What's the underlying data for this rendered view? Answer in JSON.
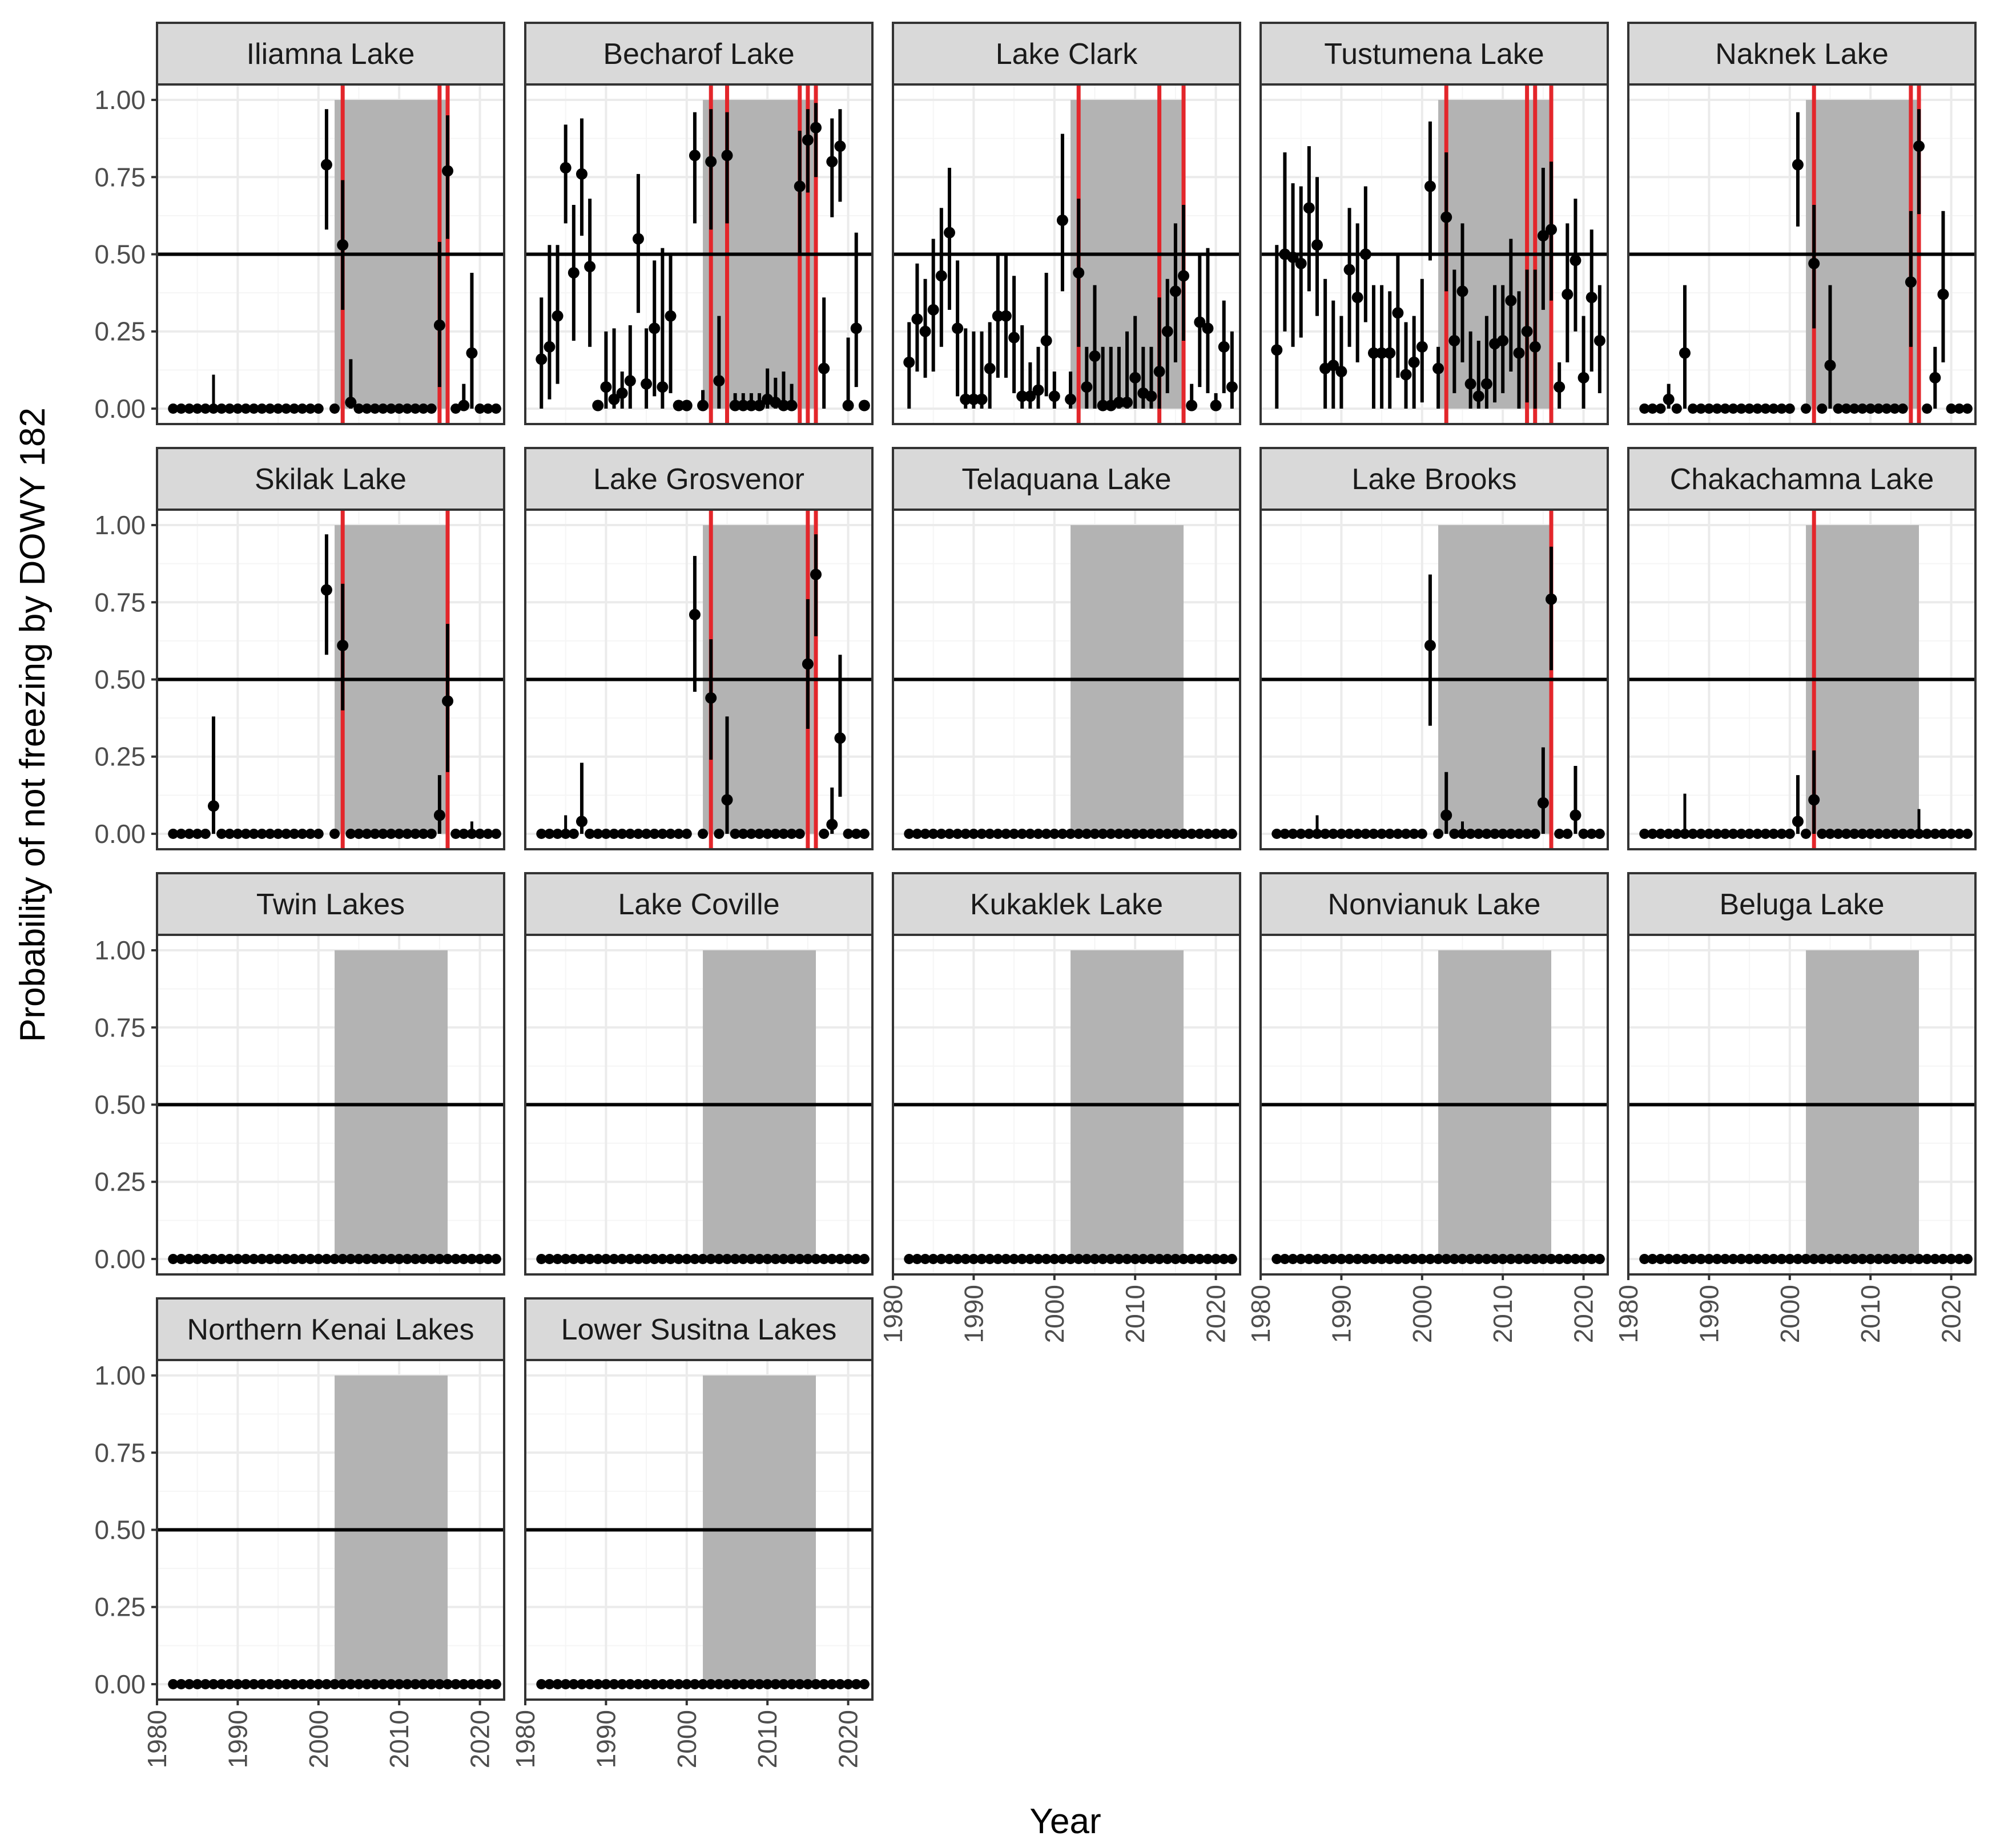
{
  "chart_data": {
    "type": "faceted-scatter-errorbar",
    "xlabel": "Year",
    "ylabel": "Probability of not freezing by DOWY 182",
    "xlim": [
      1980,
      2023
    ],
    "ylim": [
      -0.05,
      1.05
    ],
    "x_ticks": [
      1980,
      1990,
      2000,
      2010,
      2020
    ],
    "y_ticks": [
      0,
      0.25,
      0.5,
      0.75,
      1
    ],
    "y_tick_labels": [
      "0.00",
      "0.25",
      "0.50",
      "0.75",
      "1.00"
    ],
    "reference_line_y": 0.5,
    "shaded_band": [
      2002,
      2016
    ],
    "colors": {
      "point": "#000000",
      "flag_line": "#e3262b",
      "band": "#b3b3b3",
      "strip_bg": "#d9d9d9",
      "grid_major": "#ebebeb",
      "grid_minor": "#f5f5f5"
    },
    "facets": [
      {
        "name": "Iliamna Lake",
        "red_lines": [
          2003,
          2015,
          2016
        ],
        "points": [
          [
            2001,
            0.79,
            0.58,
            0.97
          ],
          [
            2003,
            0.53,
            0.32,
            0.74
          ],
          [
            2004,
            0.02,
            0,
            0.16
          ],
          [
            2015,
            0.27,
            0.07,
            0.54
          ],
          [
            2016,
            0.77,
            0.55,
            0.95
          ],
          [
            2018,
            0.01,
            0,
            0.08
          ],
          [
            2019,
            0.18,
            0,
            0.44
          ]
        ],
        "small": [
          [
            1987,
            0.11
          ]
        ]
      },
      {
        "name": "Becharof Lake",
        "red_lines": [
          2003,
          2005,
          2014,
          2015,
          2016
        ],
        "points": [
          [
            1982,
            0.16,
            0,
            0.36
          ],
          [
            1983,
            0.2,
            0.03,
            0.53
          ],
          [
            1984,
            0.3,
            0.08,
            0.53
          ],
          [
            1985,
            0.78,
            0.6,
            0.92
          ],
          [
            1986,
            0.44,
            0.22,
            0.66
          ],
          [
            1987,
            0.76,
            0.56,
            0.94
          ],
          [
            1988,
            0.46,
            0.2,
            0.68
          ],
          [
            1989,
            0.01,
            0,
            0.02
          ],
          [
            1990,
            0.07,
            0,
            0.25
          ],
          [
            1991,
            0.03,
            0,
            0.26
          ],
          [
            1992,
            0.05,
            0,
            0.12
          ],
          [
            1993,
            0.09,
            0,
            0.27
          ],
          [
            1994,
            0.55,
            0.31,
            0.76
          ],
          [
            1995,
            0.08,
            0,
            0.26
          ],
          [
            1996,
            0.26,
            0.04,
            0.48
          ],
          [
            1997,
            0.07,
            0,
            0.52
          ],
          [
            1998,
            0.3,
            0.05,
            0.5
          ],
          [
            1999,
            0.01,
            0,
            0.02
          ],
          [
            2000,
            0.01,
            0,
            0.02
          ],
          [
            2001,
            0.82,
            0.6,
            0.96
          ],
          [
            2002,
            0.01,
            0,
            0.06
          ],
          [
            2003,
            0.8,
            0.58,
            0.97
          ],
          [
            2004,
            0.09,
            0,
            0.3
          ],
          [
            2005,
            0.82,
            0.6,
            0.96
          ],
          [
            2006,
            0.01,
            0,
            0.05
          ],
          [
            2007,
            0.01,
            0,
            0.05
          ],
          [
            2008,
            0.01,
            0,
            0.05
          ],
          [
            2009,
            0.01,
            0,
            0.05
          ],
          [
            2010,
            0.03,
            0,
            0.13
          ],
          [
            2011,
            0.02,
            0,
            0.1
          ],
          [
            2012,
            0.01,
            0,
            0.12
          ],
          [
            2013,
            0.01,
            0,
            0.08
          ],
          [
            2014,
            0.72,
            0.5,
            0.9
          ],
          [
            2015,
            0.87,
            0.7,
            0.97
          ],
          [
            2016,
            0.91,
            0.75,
            0.99
          ],
          [
            2017,
            0.13,
            0,
            0.36
          ],
          [
            2018,
            0.8,
            0.62,
            0.94
          ],
          [
            2019,
            0.85,
            0.67,
            0.97
          ],
          [
            2020,
            0.01,
            0,
            0.23
          ],
          [
            2021,
            0.26,
            0.07,
            0.57
          ],
          [
            2022,
            0.01,
            0,
            0.02
          ]
        ],
        "small": []
      },
      {
        "name": "Lake Clark",
        "red_lines": [
          2003,
          2013,
          2016
        ],
        "points": [
          [
            1982,
            0.15,
            0,
            0.28
          ],
          [
            1983,
            0.29,
            0.12,
            0.47
          ],
          [
            1984,
            0.25,
            0.1,
            0.42
          ],
          [
            1985,
            0.32,
            0.12,
            0.55
          ],
          [
            1986,
            0.43,
            0.2,
            0.65
          ],
          [
            1987,
            0.57,
            0.32,
            0.78
          ],
          [
            1988,
            0.26,
            0.04,
            0.48
          ],
          [
            1989,
            0.03,
            0,
            0.26
          ],
          [
            1990,
            0.03,
            0,
            0.25
          ],
          [
            1991,
            0.03,
            0,
            0.25
          ],
          [
            1992,
            0.13,
            0,
            0.28
          ],
          [
            1993,
            0.3,
            0.1,
            0.5
          ],
          [
            1994,
            0.3,
            0.1,
            0.5
          ],
          [
            1995,
            0.23,
            0.05,
            0.43
          ],
          [
            1996,
            0.04,
            0,
            0.27
          ],
          [
            1997,
            0.04,
            0,
            0.15
          ],
          [
            1998,
            0.06,
            0,
            0.2
          ],
          [
            1999,
            0.22,
            0.04,
            0.44
          ],
          [
            2000,
            0.04,
            0,
            0.12
          ],
          [
            2001,
            0.61,
            0.38,
            0.89
          ],
          [
            2002,
            0.03,
            0,
            0.12
          ],
          [
            2003,
            0.44,
            0.2,
            0.68
          ],
          [
            2004,
            0.07,
            0,
            0.2
          ],
          [
            2005,
            0.17,
            0,
            0.4
          ],
          [
            2006,
            0.01,
            0,
            0.2
          ],
          [
            2007,
            0.01,
            0,
            0.2
          ],
          [
            2008,
            0.02,
            0,
            0.2
          ],
          [
            2009,
            0.02,
            0,
            0.25
          ],
          [
            2010,
            0.1,
            0,
            0.3
          ],
          [
            2011,
            0.05,
            0,
            0.2
          ],
          [
            2012,
            0.04,
            0,
            0.2
          ],
          [
            2013,
            0.12,
            0,
            0.36
          ],
          [
            2014,
            0.25,
            0.05,
            0.42
          ],
          [
            2015,
            0.38,
            0.15,
            0.6
          ],
          [
            2016,
            0.43,
            0.22,
            0.66
          ],
          [
            2017,
            0.01,
            0,
            0.08
          ],
          [
            2018,
            0.28,
            0.07,
            0.5
          ],
          [
            2019,
            0.26,
            0.05,
            0.52
          ],
          [
            2020,
            0.01,
            0,
            0.05
          ],
          [
            2021,
            0.2,
            0.05,
            0.35
          ],
          [
            2022,
            0.07,
            0,
            0.25
          ]
        ],
        "small": []
      },
      {
        "name": "Tustumena Lake",
        "red_lines": [
          2003,
          2013,
          2014,
          2016
        ],
        "points": [
          [
            1982,
            0.19,
            0,
            0.53
          ],
          [
            1983,
            0.5,
            0.25,
            0.83
          ],
          [
            1984,
            0.49,
            0.2,
            0.73
          ],
          [
            1985,
            0.47,
            0.23,
            0.72
          ],
          [
            1986,
            0.65,
            0.38,
            0.85
          ],
          [
            1987,
            0.53,
            0.3,
            0.75
          ],
          [
            1988,
            0.13,
            0,
            0.42
          ],
          [
            1989,
            0.14,
            0,
            0.35
          ],
          [
            1990,
            0.12,
            0,
            0.3
          ],
          [
            1991,
            0.45,
            0.2,
            0.65
          ],
          [
            1992,
            0.36,
            0.15,
            0.6
          ],
          [
            1993,
            0.5,
            0.28,
            0.72
          ],
          [
            1994,
            0.18,
            0,
            0.4
          ],
          [
            1995,
            0.18,
            0,
            0.4
          ],
          [
            1996,
            0.18,
            0,
            0.38
          ],
          [
            1997,
            0.31,
            0.1,
            0.5
          ],
          [
            1998,
            0.11,
            0,
            0.28
          ],
          [
            1999,
            0.15,
            0,
            0.3
          ],
          [
            2000,
            0.2,
            0.02,
            0.42
          ],
          [
            2001,
            0.72,
            0.48,
            0.93
          ],
          [
            2002,
            0.13,
            0,
            0.2
          ],
          [
            2003,
            0.62,
            0.38,
            0.83
          ],
          [
            2004,
            0.22,
            0.05,
            0.45
          ],
          [
            2005,
            0.38,
            0.15,
            0.6
          ],
          [
            2006,
            0.08,
            0,
            0.25
          ],
          [
            2007,
            0.04,
            0,
            0.22
          ],
          [
            2008,
            0.08,
            0,
            0.3
          ],
          [
            2009,
            0.21,
            0.02,
            0.4
          ],
          [
            2010,
            0.22,
            0.05,
            0.4
          ],
          [
            2011,
            0.35,
            0.12,
            0.55
          ],
          [
            2012,
            0.18,
            0,
            0.38
          ],
          [
            2013,
            0.25,
            0.02,
            0.45
          ],
          [
            2014,
            0.2,
            0,
            0.45
          ],
          [
            2015,
            0.56,
            0.32,
            0.78
          ],
          [
            2016,
            0.58,
            0.35,
            0.8
          ],
          [
            2017,
            0.07,
            0,
            0.15
          ],
          [
            2018,
            0.37,
            0.15,
            0.6
          ],
          [
            2019,
            0.48,
            0.25,
            0.68
          ],
          [
            2020,
            0.1,
            0,
            0.3
          ],
          [
            2021,
            0.36,
            0.12,
            0.58
          ],
          [
            2022,
            0.22,
            0.05,
            0.4
          ]
        ],
        "small": []
      },
      {
        "name": "Naknek Lake",
        "red_lines": [
          2003,
          2015,
          2016
        ],
        "points": [
          [
            1985,
            0.03,
            0,
            0.08
          ],
          [
            1987,
            0.18,
            0,
            0.4
          ],
          [
            2001,
            0.79,
            0.59,
            0.96
          ],
          [
            2003,
            0.47,
            0.26,
            0.66
          ],
          [
            2005,
            0.14,
            0,
            0.4
          ],
          [
            2015,
            0.41,
            0.2,
            0.64
          ],
          [
            2016,
            0.85,
            0.63,
            0.97
          ],
          [
            2018,
            0.1,
            0,
            0.2
          ],
          [
            2019,
            0.37,
            0.15,
            0.64
          ]
        ],
        "small": []
      },
      {
        "name": "Skilak Lake",
        "red_lines": [
          2003,
          2016
        ],
        "points": [
          [
            1987,
            0.09,
            0,
            0.38
          ],
          [
            2001,
            0.79,
            0.58,
            0.97
          ],
          [
            2003,
            0.61,
            0.4,
            0.81
          ],
          [
            2015,
            0.06,
            0,
            0.19
          ],
          [
            2016,
            0.43,
            0.2,
            0.68
          ]
        ],
        "small": [
          [
            2019,
            0.04
          ]
        ]
      },
      {
        "name": "Lake Grosvenor",
        "red_lines": [
          2003,
          2015,
          2016
        ],
        "points": [
          [
            1987,
            0.04,
            0,
            0.23
          ],
          [
            2001,
            0.71,
            0.46,
            0.9
          ],
          [
            2003,
            0.44,
            0.24,
            0.63
          ],
          [
            2005,
            0.11,
            0,
            0.38
          ],
          [
            2015,
            0.55,
            0.34,
            0.76
          ],
          [
            2016,
            0.84,
            0.64,
            0.97
          ],
          [
            2018,
            0.03,
            0,
            0.15
          ],
          [
            2019,
            0.31,
            0.12,
            0.58
          ]
        ],
        "small": [
          [
            1985,
            0.06
          ]
        ]
      },
      {
        "name": "Telaquana Lake",
        "red_lines": [],
        "points": [],
        "small": []
      },
      {
        "name": "Lake Brooks",
        "red_lines": [
          2016
        ],
        "points": [
          [
            2001,
            0.61,
            0.35,
            0.84
          ],
          [
            2003,
            0.06,
            0,
            0.2
          ],
          [
            2015,
            0.1,
            0,
            0.28
          ],
          [
            2016,
            0.76,
            0.53,
            0.93
          ],
          [
            2019,
            0.06,
            0,
            0.22
          ]
        ],
        "small": [
          [
            1987,
            0.06
          ],
          [
            2005,
            0.04
          ]
        ]
      },
      {
        "name": "Chakachamna Lake",
        "red_lines": [
          2003
        ],
        "points": [
          [
            2001,
            0.04,
            0,
            0.19
          ],
          [
            2003,
            0.11,
            0,
            0.27
          ]
        ],
        "small": [
          [
            1987,
            0.13
          ],
          [
            2016,
            0.08
          ]
        ]
      },
      {
        "name": "Twin Lakes",
        "red_lines": [],
        "points": [],
        "small": []
      },
      {
        "name": "Lake Coville",
        "red_lines": [],
        "points": [],
        "small": []
      },
      {
        "name": "Kukaklek Lake",
        "red_lines": [],
        "points": [],
        "small": []
      },
      {
        "name": "Nonvianuk Lake",
        "red_lines": [],
        "points": [],
        "small": []
      },
      {
        "name": "Beluga Lake",
        "red_lines": [],
        "points": [],
        "small": []
      },
      {
        "name": "Northern Kenai Lakes",
        "red_lines": [],
        "points": [],
        "small": []
      },
      {
        "name": "Lower Susitna Lakes",
        "red_lines": [],
        "points": [],
        "small": []
      }
    ]
  }
}
